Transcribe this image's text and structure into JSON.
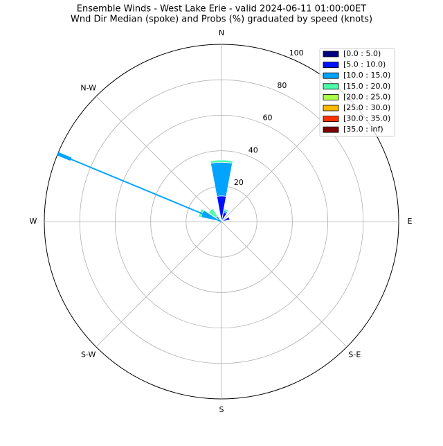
{
  "chart_data": {
    "type": "windrose",
    "title": "Ensemble Winds - West Lake Erie - valid 2024-06-11 01:00:00ET",
    "subtitle": "Wnd Dir Median (spoke) and Probs (%) graduated by speed (knots)",
    "x": [
      0,
      22.5,
      45,
      67.5,
      90,
      112.5,
      135,
      157.5,
      180,
      202.5,
      225,
      247.5,
      270,
      292.5,
      315,
      337.5
    ],
    "series": [
      {
        "name": "[0.0 : 5.0)",
        "color": "#00007f",
        "values": [
          0.5,
          0.4,
          0,
          0.4,
          0,
          0,
          0,
          0,
          0,
          0,
          0,
          0,
          0,
          0.3,
          0.3,
          0
        ]
      },
      {
        "name": "[5.0 : 10.0)",
        "color": "#0010ff",
        "values": [
          14,
          5,
          0,
          4.5,
          0,
          0,
          0,
          0,
          0,
          0,
          0,
          0,
          0,
          1.5,
          0.7,
          0
        ]
      },
      {
        "name": "[10.0 : 15.0)",
        "color": "#00a4ff",
        "values": [
          19,
          1,
          0,
          0,
          0,
          0,
          0,
          0,
          0,
          0,
          0,
          0,
          0,
          10,
          3,
          0
        ]
      },
      {
        "name": "[15.0 : 20.0)",
        "color": "#4dffaa",
        "values": [
          1.3,
          1,
          0,
          0,
          0,
          0,
          0,
          0,
          0,
          0,
          0,
          0,
          0,
          1.5,
          5,
          0
        ]
      },
      {
        "name": "[20.0 : 25.0)",
        "color": "#aaff4d",
        "values": [
          0,
          0,
          0,
          0,
          0,
          0,
          0,
          0,
          0,
          0,
          0,
          0,
          0,
          0,
          0,
          0
        ]
      },
      {
        "name": "[25.0 : 30.0)",
        "color": "#ffb900",
        "values": [
          0,
          0,
          0,
          0,
          0,
          0,
          0,
          0,
          0,
          0,
          0,
          0,
          0,
          0,
          0,
          0
        ]
      },
      {
        "name": "[30.0 : 35.0)",
        "color": "#ff3000",
        "values": [
          0,
          0,
          0,
          0,
          0,
          0,
          0,
          0,
          0,
          0,
          0,
          0,
          0,
          0,
          0,
          0
        ]
      },
      {
        "name": "[35.0 : inf)",
        "color": "#7f0000",
        "values": [
          0,
          0,
          0,
          0,
          0,
          0,
          0,
          0,
          0,
          0,
          0,
          0,
          0,
          0,
          0,
          0
        ]
      }
    ],
    "spoke": {
      "direction": 292.5,
      "value": 100,
      "color": "#00a4ff"
    },
    "ylim": [
      0,
      100
    ],
    "yticks": [
      20,
      40,
      60,
      80,
      100
    ],
    "xticks": [
      0,
      45,
      90,
      135,
      180,
      225,
      270,
      315
    ],
    "xtick_labels": [
      "N",
      null,
      "E",
      "S-E",
      "S",
      "S-W",
      "W",
      "N-W"
    ],
    "grid": true,
    "legend": "upper right"
  }
}
